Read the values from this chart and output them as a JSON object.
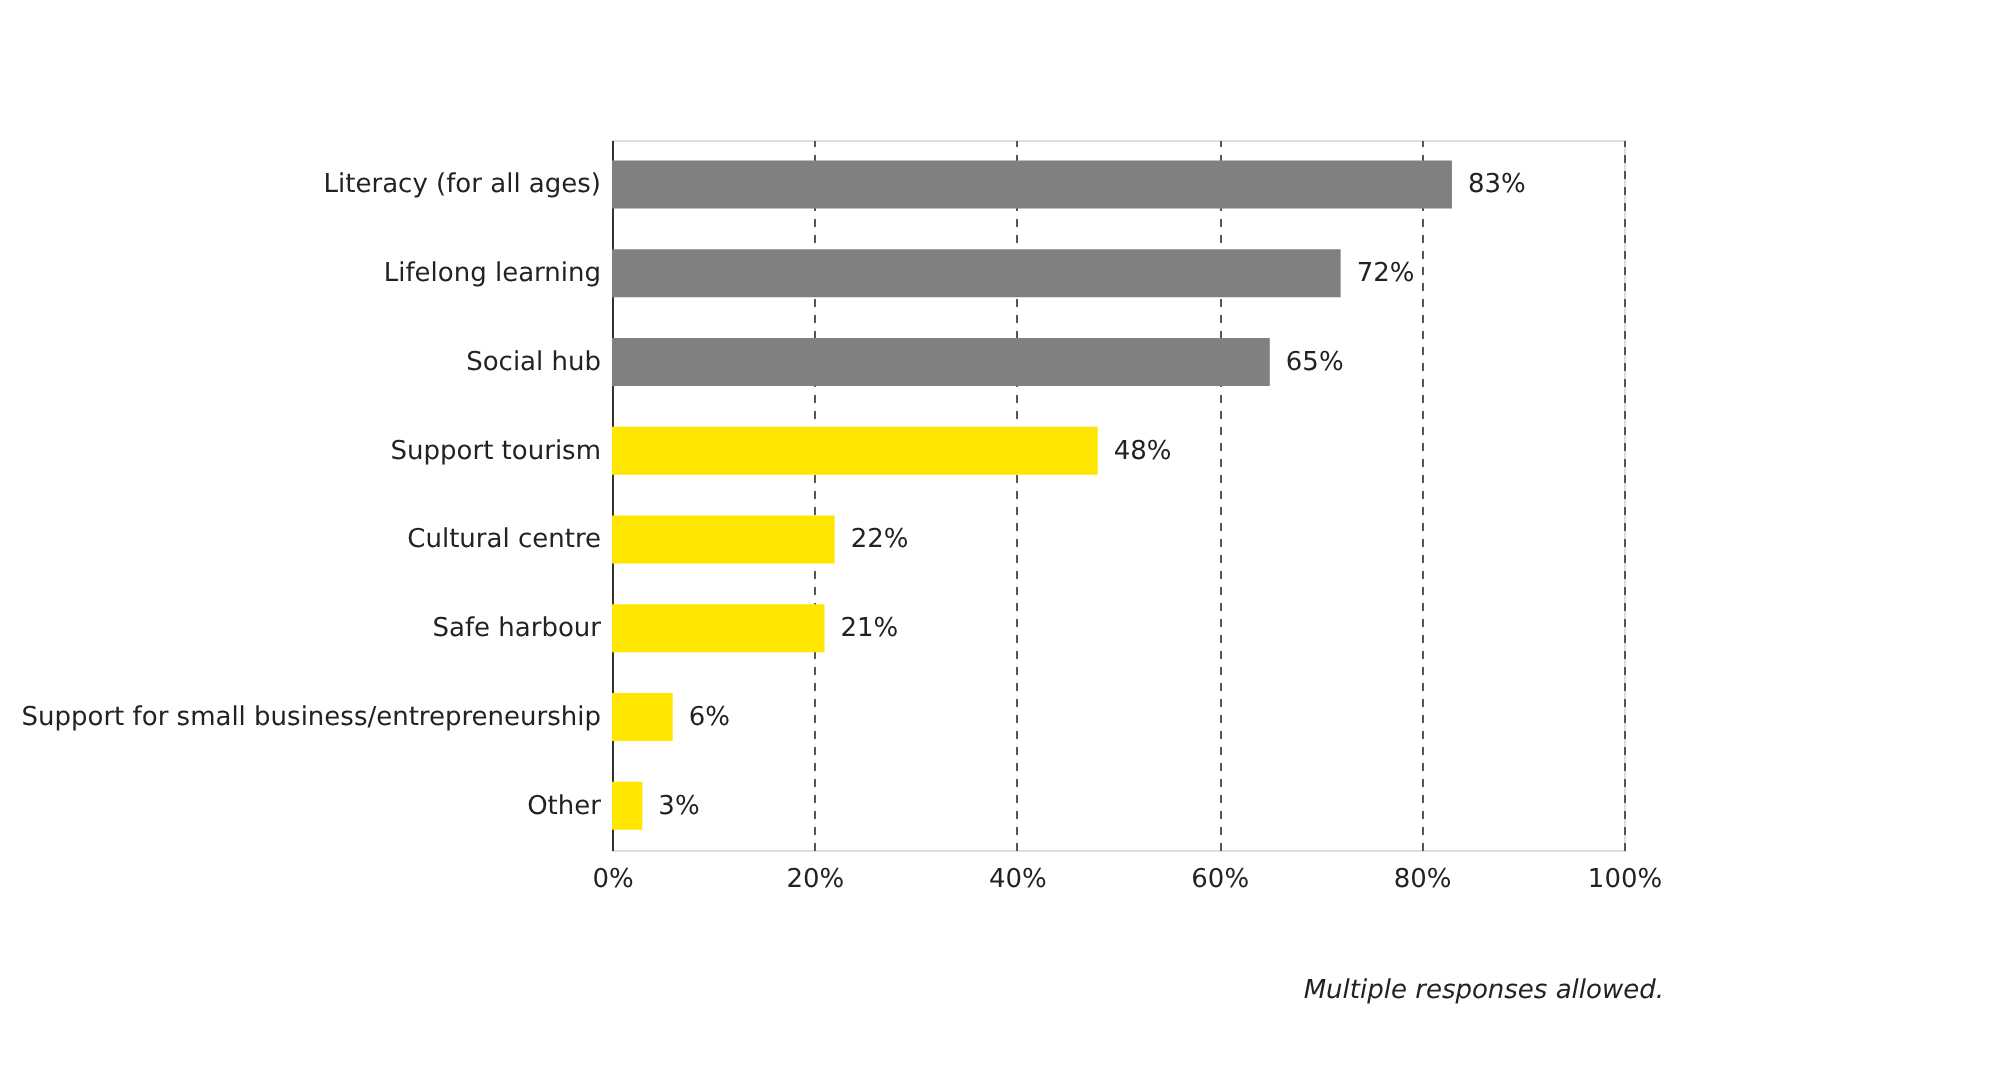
{
  "chart_data": {
    "type": "bar",
    "orientation": "horizontal",
    "categories": [
      "Literacy (for all ages)",
      "Lifelong learning",
      "Social hub",
      "Support tourism",
      "Cultural centre",
      "Safe harbour",
      "Support for small business/entrepreneurship",
      "Other"
    ],
    "values": [
      83,
      72,
      65,
      48,
      22,
      21,
      6,
      3
    ],
    "value_labels": [
      "83%",
      "72%",
      "65%",
      "48%",
      "22%",
      "21%",
      "6%",
      "3%"
    ],
    "colors": [
      "#808080",
      "#808080",
      "#808080",
      "#ffe600",
      "#ffe600",
      "#ffe600",
      "#ffe600",
      "#ffe600"
    ],
    "xlim": [
      0,
      100
    ],
    "xticks": [
      {
        "value": 0,
        "label": "0%"
      },
      {
        "value": 20,
        "label": "20%"
      },
      {
        "value": 40,
        "label": "40%"
      },
      {
        "value": 60,
        "label": "60%"
      },
      {
        "value": 80,
        "label": "80%"
      },
      {
        "value": 100,
        "label": "100%"
      }
    ],
    "grid": "x",
    "annotations": [
      "Multiple responses allowed."
    ]
  }
}
